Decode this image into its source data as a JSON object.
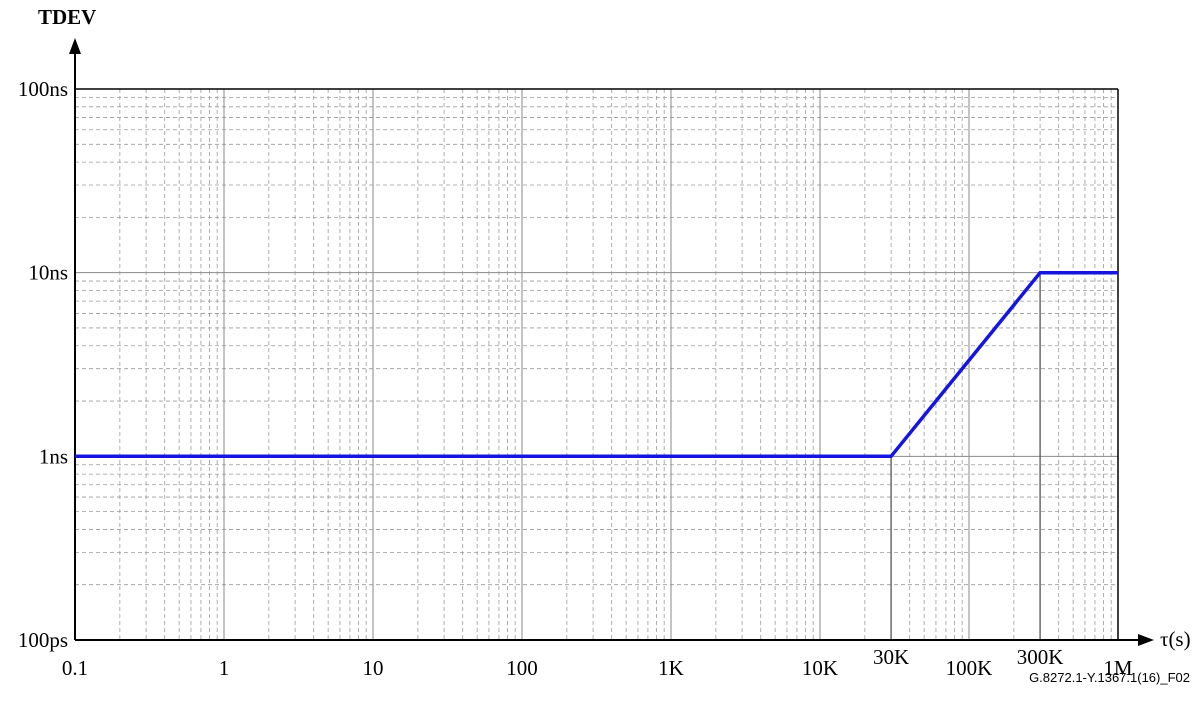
{
  "chart_data": {
    "type": "line",
    "ylabel": "TDEV",
    "xlabel": "τ(s)",
    "x_scale": "log",
    "y_scale": "log",
    "xlim": [
      0.1,
      1000000
    ],
    "ylim": [
      1e-10,
      1e-07
    ],
    "grid": true,
    "x_ticks": [
      {
        "value": 0.1,
        "label": "0.1"
      },
      {
        "value": 1,
        "label": "1"
      },
      {
        "value": 10,
        "label": "10"
      },
      {
        "value": 100,
        "label": "100"
      },
      {
        "value": 1000,
        "label": "1K"
      },
      {
        "value": 10000,
        "label": "10K"
      },
      {
        "value": 30000,
        "label": "30K"
      },
      {
        "value": 100000,
        "label": "100K"
      },
      {
        "value": 300000,
        "label": "300K"
      },
      {
        "value": 1000000,
        "label": "1M"
      }
    ],
    "y_ticks": [
      {
        "value": 1e-10,
        "label": "100ps"
      },
      {
        "value": 1e-09,
        "label": "1ns"
      },
      {
        "value": 1e-08,
        "label": "10ns"
      },
      {
        "value": 1e-07,
        "label": "100ns"
      }
    ],
    "series": [
      {
        "color": "#1515e0",
        "points": [
          [
            0.1,
            1e-09
          ],
          [
            30000,
            1e-09
          ],
          [
            300000,
            1e-08
          ],
          [
            1000000,
            1e-08
          ]
        ]
      }
    ],
    "reference_lines_x": [
      30000,
      300000
    ],
    "figure_id": "G.8272.1-Y.1367.1(16)_F02"
  }
}
